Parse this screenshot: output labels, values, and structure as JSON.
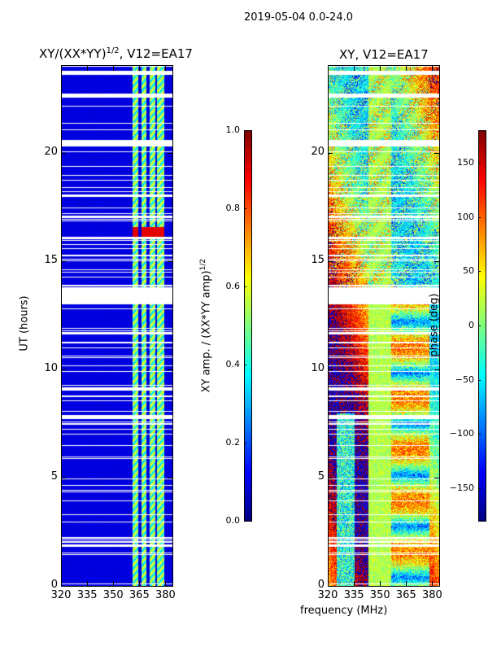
{
  "suptitle": "2019-05-04 0.0-24.0",
  "chart_data": [
    {
      "type": "heatmap",
      "title": "XY/(XX*YY)",
      "title_sup": "1/2",
      "title_suffix": ", V12=EA17",
      "xlabel": "",
      "ylabel": "UT (hours)",
      "xlim": [
        320,
        384
      ],
      "ylim": [
        0,
        24
      ],
      "xticks": [
        "320",
        "335",
        "350",
        "365",
        "380"
      ],
      "yticks": [
        "0",
        "5",
        "10",
        "15",
        "20"
      ],
      "background_value": 0.08,
      "bands_mhz": [
        [
          361,
          364
        ],
        [
          366,
          369
        ],
        [
          370.5,
          374
        ],
        [
          375,
          379
        ]
      ],
      "band_value": 0.5,
      "hot_spot": {
        "hours": [
          16.1,
          16.6
        ],
        "value": 0.9
      },
      "flagged_hours": [
        [
          23.6,
          23.8
        ],
        [
          22.55,
          22.7
        ],
        [
          20.3,
          20.6
        ],
        [
          18.0,
          18.1
        ],
        [
          17.0,
          17.1
        ],
        [
          13.0,
          13.8
        ],
        [
          9.05,
          9.2
        ],
        [
          7.7,
          7.9
        ],
        [
          2.0,
          2.1
        ]
      ],
      "colorbar": {
        "label": "XY amp. / (XX*YY amp)",
        "label_sup": "1/2",
        "range": [
          0,
          1
        ],
        "ticks": [
          "0.0",
          "0.2",
          "0.4",
          "0.6",
          "0.8",
          "1.0"
        ]
      }
    },
    {
      "type": "heatmap",
      "title": "XY, V12=EA17",
      "xlabel": "frequency (MHz)",
      "ylabel": "",
      "xlim": [
        320,
        384
      ],
      "ylim": [
        0,
        24
      ],
      "xticks": [
        "320",
        "335",
        "350",
        "365",
        "380"
      ],
      "yticks": [
        "0",
        "5",
        "10",
        "15",
        "20"
      ],
      "flagged_hours": [
        [
          23.6,
          23.8
        ],
        [
          22.55,
          22.7
        ],
        [
          20.3,
          20.6
        ],
        [
          18.0,
          18.1
        ],
        [
          17.0,
          17.1
        ],
        [
          13.0,
          13.8
        ],
        [
          9.05,
          9.2
        ],
        [
          7.7,
          7.9
        ],
        [
          2.0,
          2.1
        ]
      ],
      "colorbar": {
        "label": "phase (deg)",
        "range": [
          -180,
          180
        ],
        "ticks": [
          "−150",
          "−100",
          "−50",
          "0",
          "50",
          "100",
          "150"
        ]
      }
    }
  ]
}
